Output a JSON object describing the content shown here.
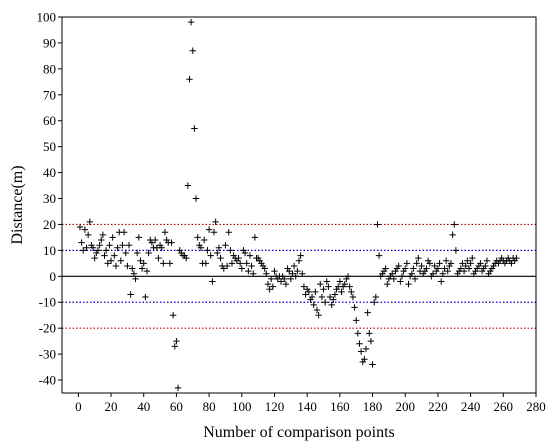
{
  "chart_data": {
    "type": "scatter",
    "xlabel": "Number of comparison points",
    "ylabel": "Distance(m)",
    "xlim": [
      -10,
      280
    ],
    "ylim": [
      -45,
      100
    ],
    "xticks": [
      0,
      20,
      40,
      60,
      80,
      100,
      120,
      140,
      160,
      180,
      200,
      220,
      240,
      260,
      280
    ],
    "yticks": [
      -40,
      -30,
      -20,
      -10,
      0,
      10,
      20,
      30,
      40,
      50,
      60,
      70,
      80,
      90,
      100
    ],
    "marker": "+",
    "marker_color": "#000000",
    "grid": false,
    "reference_lines": [
      {
        "y": 20,
        "color": "#b30000",
        "style": "dotted"
      },
      {
        "y": 10,
        "color": "#0000cc",
        "style": "dotted"
      },
      {
        "y": 0,
        "color": "#000000",
        "style": "solid"
      },
      {
        "y": -10,
        "color": "#0000cc",
        "style": "dotted"
      },
      {
        "y": -20,
        "color": "#b30000",
        "style": "dotted"
      }
    ],
    "series": [
      {
        "points": [
          [
            1,
            19
          ],
          [
            2,
            13
          ],
          [
            3,
            10
          ],
          [
            4,
            18
          ],
          [
            5,
            11
          ],
          [
            6,
            16
          ],
          [
            7,
            21
          ],
          [
            8,
            12
          ],
          [
            9,
            11
          ],
          [
            10,
            7
          ],
          [
            11,
            9
          ],
          [
            12,
            10
          ],
          [
            13,
            12
          ],
          [
            14,
            14
          ],
          [
            15,
            16
          ],
          [
            16,
            8
          ],
          [
            17,
            10
          ],
          [
            18,
            5
          ],
          [
            19,
            12
          ],
          [
            20,
            6
          ],
          [
            21,
            15
          ],
          [
            22,
            8
          ],
          [
            23,
            4
          ],
          [
            24,
            11
          ],
          [
            25,
            17
          ],
          [
            26,
            6
          ],
          [
            27,
            12
          ],
          [
            28,
            17
          ],
          [
            29,
            9
          ],
          [
            30,
            4
          ],
          [
            31,
            12
          ],
          [
            32,
            -7
          ],
          [
            33,
            3
          ],
          [
            34,
            1
          ],
          [
            35,
            -1
          ],
          [
            36,
            9
          ],
          [
            37,
            15
          ],
          [
            38,
            6
          ],
          [
            39,
            3
          ],
          [
            40,
            5
          ],
          [
            41,
            -8
          ],
          [
            42,
            2
          ],
          [
            43,
            9
          ],
          [
            44,
            14
          ],
          [
            45,
            13
          ],
          [
            46,
            11
          ],
          [
            47,
            14
          ],
          [
            48,
            11
          ],
          [
            49,
            7
          ],
          [
            50,
            12
          ],
          [
            51,
            11
          ],
          [
            52,
            5
          ],
          [
            53,
            17
          ],
          [
            54,
            14
          ],
          [
            55,
            13
          ],
          [
            56,
            5
          ],
          [
            57,
            13
          ],
          [
            58,
            -15
          ],
          [
            59,
            -27
          ],
          [
            60,
            -25
          ],
          [
            61,
            -43
          ],
          [
            62,
            10
          ],
          [
            63,
            9
          ],
          [
            64,
            8
          ],
          [
            65,
            8
          ],
          [
            66,
            7
          ],
          [
            67,
            35
          ],
          [
            68,
            76
          ],
          [
            69,
            98
          ],
          [
            70,
            87
          ],
          [
            71,
            57
          ],
          [
            72,
            30
          ],
          [
            73,
            15
          ],
          [
            74,
            12
          ],
          [
            75,
            11
          ],
          [
            76,
            5
          ],
          [
            77,
            14
          ],
          [
            78,
            5
          ],
          [
            79,
            10
          ],
          [
            80,
            18
          ],
          [
            81,
            8
          ],
          [
            82,
            -2
          ],
          [
            83,
            17
          ],
          [
            84,
            21
          ],
          [
            85,
            9
          ],
          [
            86,
            11
          ],
          [
            87,
            7
          ],
          [
            88,
            4
          ],
          [
            89,
            3
          ],
          [
            90,
            12
          ],
          [
            91,
            4
          ],
          [
            92,
            17
          ],
          [
            93,
            10
          ],
          [
            94,
            5
          ],
          [
            95,
            8
          ],
          [
            96,
            7
          ],
          [
            97,
            6
          ],
          [
            98,
            7
          ],
          [
            99,
            5
          ],
          [
            100,
            3
          ],
          [
            101,
            10
          ],
          [
            102,
            9
          ],
          [
            103,
            5
          ],
          [
            104,
            2
          ],
          [
            105,
            8
          ],
          [
            106,
            4
          ],
          [
            107,
            1
          ],
          [
            108,
            15
          ],
          [
            109,
            7
          ],
          [
            110,
            7
          ],
          [
            111,
            6
          ],
          [
            112,
            5
          ],
          [
            113,
            4
          ],
          [
            114,
            3
          ],
          [
            115,
            1
          ],
          [
            116,
            -3
          ],
          [
            117,
            -5
          ],
          [
            118,
            -1
          ],
          [
            119,
            -4
          ],
          [
            120,
            2
          ],
          [
            121,
            0
          ],
          [
            122,
            -1
          ],
          [
            123,
            0
          ],
          [
            124,
            -2
          ],
          [
            125,
            0
          ],
          [
            126,
            -1
          ],
          [
            127,
            -3
          ],
          [
            128,
            3
          ],
          [
            129,
            2
          ],
          [
            130,
            -1
          ],
          [
            131,
            1
          ],
          [
            132,
            4
          ],
          [
            133,
            0
          ],
          [
            134,
            2
          ],
          [
            135,
            6
          ],
          [
            136,
            8
          ],
          [
            137,
            1
          ],
          [
            138,
            -4
          ],
          [
            139,
            -7
          ],
          [
            140,
            -5
          ],
          [
            141,
            -6
          ],
          [
            142,
            -9
          ],
          [
            143,
            -8
          ],
          [
            144,
            -11
          ],
          [
            145,
            -6
          ],
          [
            146,
            -13
          ],
          [
            147,
            -15
          ],
          [
            148,
            -3
          ],
          [
            149,
            -8
          ],
          [
            150,
            -5
          ],
          [
            151,
            -10
          ],
          [
            152,
            -2
          ],
          [
            153,
            -4
          ],
          [
            154,
            -8
          ],
          [
            155,
            -11
          ],
          [
            156,
            -9
          ],
          [
            157,
            -7
          ],
          [
            158,
            -5
          ],
          [
            159,
            -4
          ],
          [
            160,
            -2
          ],
          [
            161,
            -6
          ],
          [
            162,
            -4
          ],
          [
            163,
            -3
          ],
          [
            164,
            -1
          ],
          [
            165,
            0
          ],
          [
            166,
            -4
          ],
          [
            167,
            -6
          ],
          [
            168,
            -8
          ],
          [
            169,
            -12
          ],
          [
            170,
            -17
          ],
          [
            171,
            -22
          ],
          [
            172,
            -26
          ],
          [
            173,
            -29
          ],
          [
            174,
            -33
          ],
          [
            175,
            -32
          ],
          [
            176,
            -28
          ],
          [
            177,
            -14
          ],
          [
            178,
            -22
          ],
          [
            179,
            -25
          ],
          [
            180,
            -34
          ],
          [
            181,
            -10
          ],
          [
            182,
            -8
          ],
          [
            183,
            20
          ],
          [
            184,
            8
          ],
          [
            185,
            0
          ],
          [
            186,
            1
          ],
          [
            187,
            2
          ],
          [
            188,
            3
          ],
          [
            189,
            -3
          ],
          [
            190,
            -1
          ],
          [
            191,
            0
          ],
          [
            192,
            1
          ],
          [
            193,
            -1
          ],
          [
            194,
            2
          ],
          [
            195,
            3
          ],
          [
            196,
            4
          ],
          [
            197,
            -2
          ],
          [
            198,
            0
          ],
          [
            199,
            2
          ],
          [
            200,
            3
          ],
          [
            201,
            5
          ],
          [
            202,
            -3
          ],
          [
            203,
            0
          ],
          [
            204,
            1
          ],
          [
            205,
            3
          ],
          [
            206,
            -1
          ],
          [
            207,
            5
          ],
          [
            208,
            7
          ],
          [
            209,
            2
          ],
          [
            210,
            4
          ],
          [
            211,
            1
          ],
          [
            212,
            2
          ],
          [
            213,
            3
          ],
          [
            214,
            6
          ],
          [
            215,
            5
          ],
          [
            216,
            0
          ],
          [
            217,
            1
          ],
          [
            218,
            4
          ],
          [
            219,
            2
          ],
          [
            220,
            3
          ],
          [
            221,
            5
          ],
          [
            222,
            -2
          ],
          [
            223,
            1
          ],
          [
            224,
            3
          ],
          [
            225,
            6
          ],
          [
            226,
            2
          ],
          [
            227,
            4
          ],
          [
            228,
            5
          ],
          [
            229,
            16
          ],
          [
            230,
            20
          ],
          [
            231,
            10
          ],
          [
            232,
            1
          ],
          [
            233,
            2
          ],
          [
            234,
            3
          ],
          [
            235,
            5
          ],
          [
            236,
            2
          ],
          [
            237,
            4
          ],
          [
            238,
            6
          ],
          [
            239,
            3
          ],
          [
            240,
            5
          ],
          [
            241,
            7
          ],
          [
            242,
            1
          ],
          [
            243,
            2
          ],
          [
            244,
            3
          ],
          [
            245,
            4
          ],
          [
            246,
            5
          ],
          [
            247,
            2
          ],
          [
            248,
            3
          ],
          [
            249,
            4
          ],
          [
            250,
            6
          ],
          [
            251,
            1
          ],
          [
            252,
            2
          ],
          [
            253,
            3
          ],
          [
            254,
            4
          ],
          [
            255,
            5
          ],
          [
            256,
            6
          ],
          [
            257,
            5
          ],
          [
            258,
            6
          ],
          [
            259,
            7
          ],
          [
            260,
            6
          ],
          [
            261,
            5
          ],
          [
            262,
            6
          ],
          [
            263,
            7
          ],
          [
            264,
            6
          ],
          [
            265,
            5
          ],
          [
            266,
            7
          ],
          [
            267,
            6
          ],
          [
            268,
            7
          ]
        ]
      }
    ]
  }
}
